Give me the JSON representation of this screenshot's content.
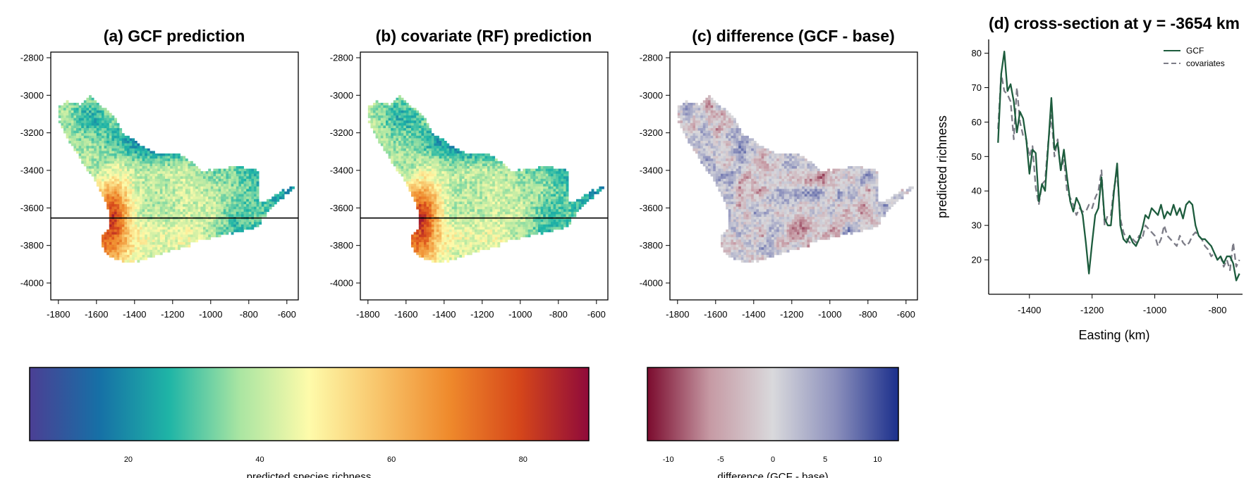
{
  "colors": {
    "gcf_line": "#1d5c3d",
    "cov_line": "#7c7c87",
    "frame": "#000000",
    "spectral": [
      "#4b3f94",
      "#1670a6",
      "#1fb5a6",
      "#a9e5a2",
      "#fefbaa",
      "#f8c46a",
      "#ef8a2c",
      "#d6471a",
      "#8f0a3a"
    ],
    "diverging": [
      "#7b0b2e",
      "#c69aa4",
      "#d9d9dc",
      "#8c90bc",
      "#1b2f8c"
    ]
  },
  "chart_data": [
    {
      "type": "heatmap",
      "title": "(a) GCF prediction",
      "x_ticks": [
        "-1800",
        "-1600",
        "-1400",
        "-1200",
        "-1000",
        "-800",
        "-600"
      ],
      "y_ticks": [
        "-2800",
        "-3000",
        "-3200",
        "-3400",
        "-3600",
        "-3800",
        "-4000"
      ],
      "xlim": [
        -1840,
        -540
      ],
      "ylim": [
        -4090,
        -2770
      ],
      "hline_y": -3654,
      "colormap": "spectral",
      "value_range": [
        5,
        90
      ]
    },
    {
      "type": "heatmap",
      "title": "(b) covariate (RF) prediction",
      "x_ticks": [
        "-1800",
        "-1600",
        "-1400",
        "-1200",
        "-1000",
        "-800",
        "-600"
      ],
      "y_ticks": [
        "-2800",
        "-3000",
        "-3200",
        "-3400",
        "-3600",
        "-3800",
        "-4000"
      ],
      "xlim": [
        -1840,
        -540
      ],
      "ylim": [
        -4090,
        -2770
      ],
      "hline_y": -3654,
      "colormap": "spectral",
      "value_range": [
        5,
        90
      ]
    },
    {
      "type": "heatmap",
      "title": "(c) difference (GCF - base)",
      "x_ticks": [
        "-1800",
        "-1600",
        "-1400",
        "-1200",
        "-1000",
        "-800",
        "-600"
      ],
      "y_ticks": [
        "-2800",
        "-3000",
        "-3200",
        "-3400",
        "-3600",
        "-3800",
        "-4000"
      ],
      "xlim": [
        -1840,
        -540
      ],
      "ylim": [
        -4090,
        -2770
      ],
      "colormap": "diverging",
      "value_range": [
        -12,
        12
      ]
    },
    {
      "type": "line",
      "title": "(d) cross-section at y = -3654 km",
      "xlabel": "Easting (km)",
      "ylabel": "predicted richness",
      "x_ticks": [
        "-1400",
        "-1200",
        "-1000",
        "-800"
      ],
      "y_ticks": [
        "20",
        "30",
        "40",
        "50",
        "60",
        "70",
        "80"
      ],
      "xlim": [
        -1530,
        -720
      ],
      "ylim": [
        10,
        84
      ],
      "legend": "top-right",
      "series": [
        {
          "name": "GCF",
          "style": "solid",
          "x": [
            -1500,
            -1490,
            -1480,
            -1470,
            -1460,
            -1450,
            -1440,
            -1430,
            -1420,
            -1410,
            -1400,
            -1390,
            -1380,
            -1370,
            -1360,
            -1350,
            -1340,
            -1330,
            -1320,
            -1310,
            -1300,
            -1290,
            -1280,
            -1270,
            -1260,
            -1250,
            -1240,
            -1230,
            -1220,
            -1210,
            -1200,
            -1190,
            -1180,
            -1170,
            -1160,
            -1150,
            -1140,
            -1130,
            -1120,
            -1110,
            -1100,
            -1090,
            -1080,
            -1070,
            -1060,
            -1050,
            -1040,
            -1030,
            -1020,
            -1010,
            -1000,
            -990,
            -980,
            -970,
            -960,
            -950,
            -940,
            -930,
            -920,
            -910,
            -900,
            -890,
            -880,
            -870,
            -860,
            -850,
            -840,
            -830,
            -820,
            -810,
            -800,
            -790,
            -780,
            -770,
            -760,
            -750,
            -740,
            -730
          ],
          "values": [
            54,
            74,
            80.5,
            69,
            71,
            66,
            57,
            63,
            61,
            55,
            45,
            52,
            51,
            37,
            42,
            40,
            53,
            67,
            52,
            54,
            46,
            52,
            44,
            37,
            34,
            38,
            36,
            33,
            25,
            16,
            25,
            33,
            35,
            44,
            32,
            30,
            30,
            40,
            48,
            30,
            26,
            25,
            27,
            25,
            24,
            26,
            29,
            33,
            32,
            35,
            34,
            33,
            36,
            32,
            34,
            33,
            36,
            33,
            35,
            32,
            36,
            37,
            36,
            30,
            27,
            26,
            26,
            25,
            24,
            22,
            20,
            21,
            19,
            21,
            21,
            19,
            14,
            16
          ]
        },
        {
          "name": "covariates",
          "style": "dashed",
          "x": [
            -1500,
            -1490,
            -1480,
            -1470,
            -1460,
            -1450,
            -1440,
            -1430,
            -1420,
            -1410,
            -1400,
            -1390,
            -1380,
            -1370,
            -1360,
            -1350,
            -1340,
            -1330,
            -1320,
            -1310,
            -1300,
            -1290,
            -1280,
            -1270,
            -1260,
            -1250,
            -1240,
            -1230,
            -1220,
            -1210,
            -1200,
            -1190,
            -1180,
            -1170,
            -1160,
            -1150,
            -1140,
            -1130,
            -1120,
            -1110,
            -1100,
            -1090,
            -1080,
            -1070,
            -1060,
            -1050,
            -1040,
            -1030,
            -1020,
            -1010,
            -1000,
            -990,
            -980,
            -970,
            -960,
            -950,
            -940,
            -930,
            -920,
            -910,
            -900,
            -890,
            -880,
            -870,
            -860,
            -850,
            -840,
            -830,
            -820,
            -810,
            -800,
            -790,
            -780,
            -770,
            -760,
            -750,
            -740,
            -730
          ],
          "values": [
            58,
            74,
            69,
            68,
            66,
            55,
            70,
            60,
            56,
            55,
            50,
            53,
            41,
            36,
            42,
            43,
            54,
            62,
            50,
            55,
            46,
            49,
            40,
            38,
            36,
            33,
            35,
            34,
            34,
            36,
            35,
            38,
            40,
            46,
            30,
            33,
            33,
            41,
            45,
            32,
            28,
            26,
            25,
            26,
            25,
            27,
            26,
            30,
            29,
            28,
            27,
            24,
            26,
            30,
            27,
            26,
            25,
            24,
            27,
            25,
            24,
            25,
            27,
            28,
            27,
            26,
            24,
            23,
            21,
            22,
            20,
            21,
            18,
            20,
            17,
            25,
            18,
            20
          ]
        }
      ]
    },
    {
      "type": "colorbar",
      "label": "predicted species richness",
      "colormap": "spectral",
      "range": [
        5,
        90
      ],
      "tick_values": [
        20,
        40,
        60,
        80
      ],
      "tick_labels": [
        "20",
        "40",
        "60",
        "80"
      ]
    },
    {
      "type": "colorbar",
      "label": "difference (GCF - base)",
      "colormap": "diverging",
      "range": [
        -12,
        12
      ],
      "tick_values": [
        -10,
        -5,
        0,
        5,
        10
      ],
      "tick_labels": [
        "-10",
        "-5",
        "0",
        "5",
        "10"
      ]
    }
  ]
}
